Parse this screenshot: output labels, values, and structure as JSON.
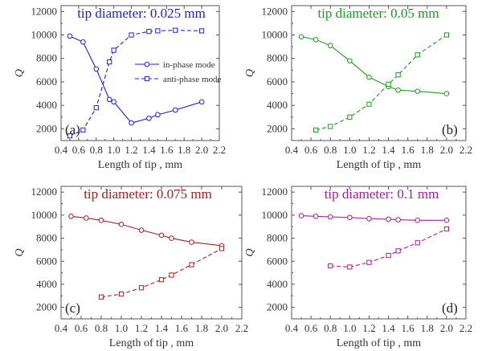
{
  "chart_data": [
    {
      "type": "line",
      "panel_label": "(a)",
      "title": "tip diameter: 0.025 mm",
      "color": "#1f1fdd",
      "xlabel": "Length of tip , mm",
      "ylabel": "Q",
      "xlim": [
        0.4,
        2.2
      ],
      "ylim": [
        1000,
        12500
      ],
      "xticks": [
        "0.4",
        "0.6",
        "0.8",
        "1.0",
        "1.2",
        "1.4",
        "1.6",
        "1.8",
        "2.0",
        "2.2"
      ],
      "yticks": [
        "2000",
        "4000",
        "6000",
        "8000",
        "10000",
        "12000"
      ],
      "legend": {
        "position": "center-right",
        "entries": [
          "in-phase mode",
          "anti-phase mode"
        ]
      },
      "series": [
        {
          "name": "in-phase mode",
          "style": "solid",
          "marker": "circle",
          "x": [
            0.5,
            0.65,
            0.8,
            0.95,
            1.0,
            1.2,
            1.4,
            1.5,
            1.7,
            2.0
          ],
          "y": [
            9900,
            9400,
            7100,
            4500,
            4300,
            2500,
            2900,
            3200,
            3600,
            4300
          ]
        },
        {
          "name": "anti-phase mode",
          "style": "dashed",
          "marker": "square",
          "x": [
            0.5,
            0.65,
            0.8,
            0.95,
            1.0,
            1.2,
            1.4,
            1.5,
            1.7,
            2.0
          ],
          "y": [
            1400,
            1900,
            3800,
            7700,
            8700,
            10000,
            10300,
            10350,
            10400,
            10350
          ]
        }
      ]
    },
    {
      "type": "line",
      "panel_label": "(b)",
      "title": "tip diameter: 0.05 mm",
      "color": "#1e9a1e",
      "xlabel": "Length of tip , mm",
      "ylabel": "Q",
      "xlim": [
        0.4,
        2.2
      ],
      "ylim": [
        1000,
        12500
      ],
      "xticks": [
        "0.4",
        "0.6",
        "0.8",
        "1.0",
        "1.2",
        "1.4",
        "1.6",
        "1.8",
        "2.0",
        "2.2"
      ],
      "yticks": [
        "2000",
        "4000",
        "6000",
        "8000",
        "10000",
        "12000"
      ],
      "series": [
        {
          "name": "in-phase mode",
          "style": "solid",
          "marker": "circle",
          "x": [
            0.5,
            0.65,
            0.8,
            1.0,
            1.2,
            1.4,
            1.5,
            1.7,
            2.0
          ],
          "y": [
            9850,
            9600,
            9100,
            7800,
            6400,
            5600,
            5300,
            5200,
            5000
          ]
        },
        {
          "name": "anti-phase mode",
          "style": "dashed",
          "marker": "square",
          "x": [
            0.65,
            0.8,
            1.0,
            1.2,
            1.4,
            1.5,
            1.7,
            2.0
          ],
          "y": [
            1900,
            2200,
            3000,
            4100,
            5800,
            6600,
            8300,
            10000
          ]
        }
      ]
    },
    {
      "type": "line",
      "panel_label": "(c)",
      "title": "tip diameter: 0.075 mm",
      "color": "#a52020",
      "xlabel": "Length of tip , mm",
      "ylabel": "Q",
      "xlim": [
        0.4,
        2.2
      ],
      "ylim": [
        1000,
        12500
      ],
      "xticks": [
        "0.4",
        "0.6",
        "0.8",
        "1.0",
        "1.2",
        "1.4",
        "1.6",
        "1.8",
        "2.0",
        "2.2"
      ],
      "yticks": [
        "2000",
        "4000",
        "6000",
        "8000",
        "10000",
        "12000"
      ],
      "series": [
        {
          "name": "in-phase mode",
          "style": "solid",
          "marker": "circle",
          "x": [
            0.5,
            0.65,
            0.8,
            1.0,
            1.2,
            1.4,
            1.5,
            1.7,
            2.0
          ],
          "y": [
            9900,
            9750,
            9550,
            9200,
            8700,
            8250,
            8000,
            7650,
            7350
          ]
        },
        {
          "name": "anti-phase mode",
          "style": "dashed",
          "marker": "square",
          "x": [
            0.8,
            1.0,
            1.2,
            1.4,
            1.5,
            1.7,
            2.0
          ],
          "y": [
            2900,
            3150,
            3700,
            4400,
            4800,
            5700,
            7100
          ]
        }
      ]
    },
    {
      "type": "line",
      "panel_label": "(d)",
      "title": "tip diameter: 0.1 mm",
      "color": "#a0209a",
      "xlabel": "Length of tip , mm",
      "ylabel": "Q",
      "xlim": [
        0.4,
        2.2
      ],
      "ylim": [
        1000,
        12500
      ],
      "xticks": [
        "0.4",
        "0.6",
        "0.8",
        "1.0",
        "1.2",
        "1.4",
        "1.6",
        "1.8",
        "2.0",
        "2.2"
      ],
      "yticks": [
        "2000",
        "4000",
        "6000",
        "8000",
        "10000",
        "12000"
      ],
      "series": [
        {
          "name": "in-phase mode",
          "style": "solid",
          "marker": "circle",
          "x": [
            0.5,
            0.65,
            0.8,
            1.0,
            1.2,
            1.4,
            1.5,
            1.7,
            2.0
          ],
          "y": [
            9950,
            9900,
            9850,
            9800,
            9700,
            9650,
            9600,
            9550,
            9550
          ]
        },
        {
          "name": "anti-phase mode",
          "style": "dashed",
          "marker": "square",
          "x": [
            0.8,
            1.0,
            1.2,
            1.4,
            1.5,
            1.7,
            2.0
          ],
          "y": [
            5600,
            5500,
            5900,
            6500,
            6900,
            7600,
            8800
          ]
        }
      ]
    }
  ]
}
